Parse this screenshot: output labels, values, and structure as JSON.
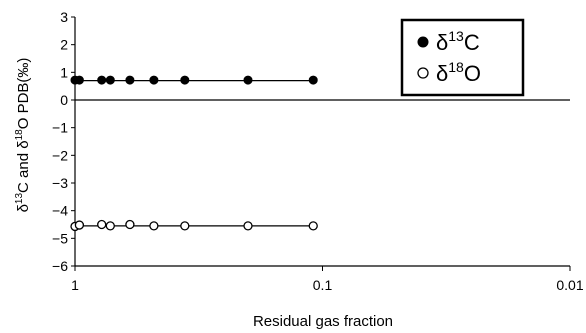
{
  "chart_data": {
    "type": "scatter",
    "title": "",
    "xlabel": "Residual gas fraction",
    "ylabel": {
      "delta": "δ",
      "sup1": "13",
      "mid": "C and ",
      "sup2": "18",
      "end": "O PDB(‰)"
    },
    "x_scale": "log",
    "x_reversed": true,
    "xlim": [
      1,
      0.01
    ],
    "ylim": [
      -6,
      3
    ],
    "x_ticks": [
      {
        "value": 1,
        "label": "1"
      },
      {
        "value": 0.1,
        "label": "0.1"
      },
      {
        "value": 0.01,
        "label": "0.01"
      }
    ],
    "y_ticks": [
      {
        "value": 3,
        "label": "3"
      },
      {
        "value": 2,
        "label": "2"
      },
      {
        "value": 1,
        "label": "1"
      },
      {
        "value": 0,
        "label": "0"
      },
      {
        "value": -1,
        "label": "−1"
      },
      {
        "value": -2,
        "label": "−2"
      },
      {
        "value": -3,
        "label": "−3"
      },
      {
        "value": -4,
        "label": "−4"
      },
      {
        "value": -5,
        "label": "−5"
      },
      {
        "value": -6,
        "label": "−6"
      }
    ],
    "grid": false,
    "legend_position": "top-right",
    "series": [
      {
        "legend_label": {
          "delta": "δ",
          "sup": "13",
          "element": "C"
        },
        "marker": "filled-circle",
        "points": [
          {
            "x": 1.0,
            "y": 0.72
          },
          {
            "x": 0.96,
            "y": 0.72
          },
          {
            "x": 0.78,
            "y": 0.72
          },
          {
            "x": 0.72,
            "y": 0.72
          },
          {
            "x": 0.6,
            "y": 0.72
          },
          {
            "x": 0.48,
            "y": 0.72
          },
          {
            "x": 0.36,
            "y": 0.72
          },
          {
            "x": 0.2,
            "y": 0.72
          },
          {
            "x": 0.109,
            "y": 0.72
          }
        ],
        "fit": [
          {
            "x": 1.0,
            "y": 0.7
          },
          {
            "x": 0.109,
            "y": 0.7
          }
        ]
      },
      {
        "legend_label": {
          "delta": "δ",
          "sup": "18",
          "element": "O"
        },
        "marker": "open-circle",
        "points": [
          {
            "x": 1.0,
            "y": -4.57
          },
          {
            "x": 0.96,
            "y": -4.52
          },
          {
            "x": 0.78,
            "y": -4.5
          },
          {
            "x": 0.72,
            "y": -4.55
          },
          {
            "x": 0.6,
            "y": -4.5
          },
          {
            "x": 0.48,
            "y": -4.55
          },
          {
            "x": 0.36,
            "y": -4.55
          },
          {
            "x": 0.2,
            "y": -4.55
          },
          {
            "x": 0.109,
            "y": -4.55
          }
        ],
        "fit": [
          {
            "x": 1.0,
            "y": -4.55
          },
          {
            "x": 0.109,
            "y": -4.55
          }
        ]
      }
    ]
  }
}
